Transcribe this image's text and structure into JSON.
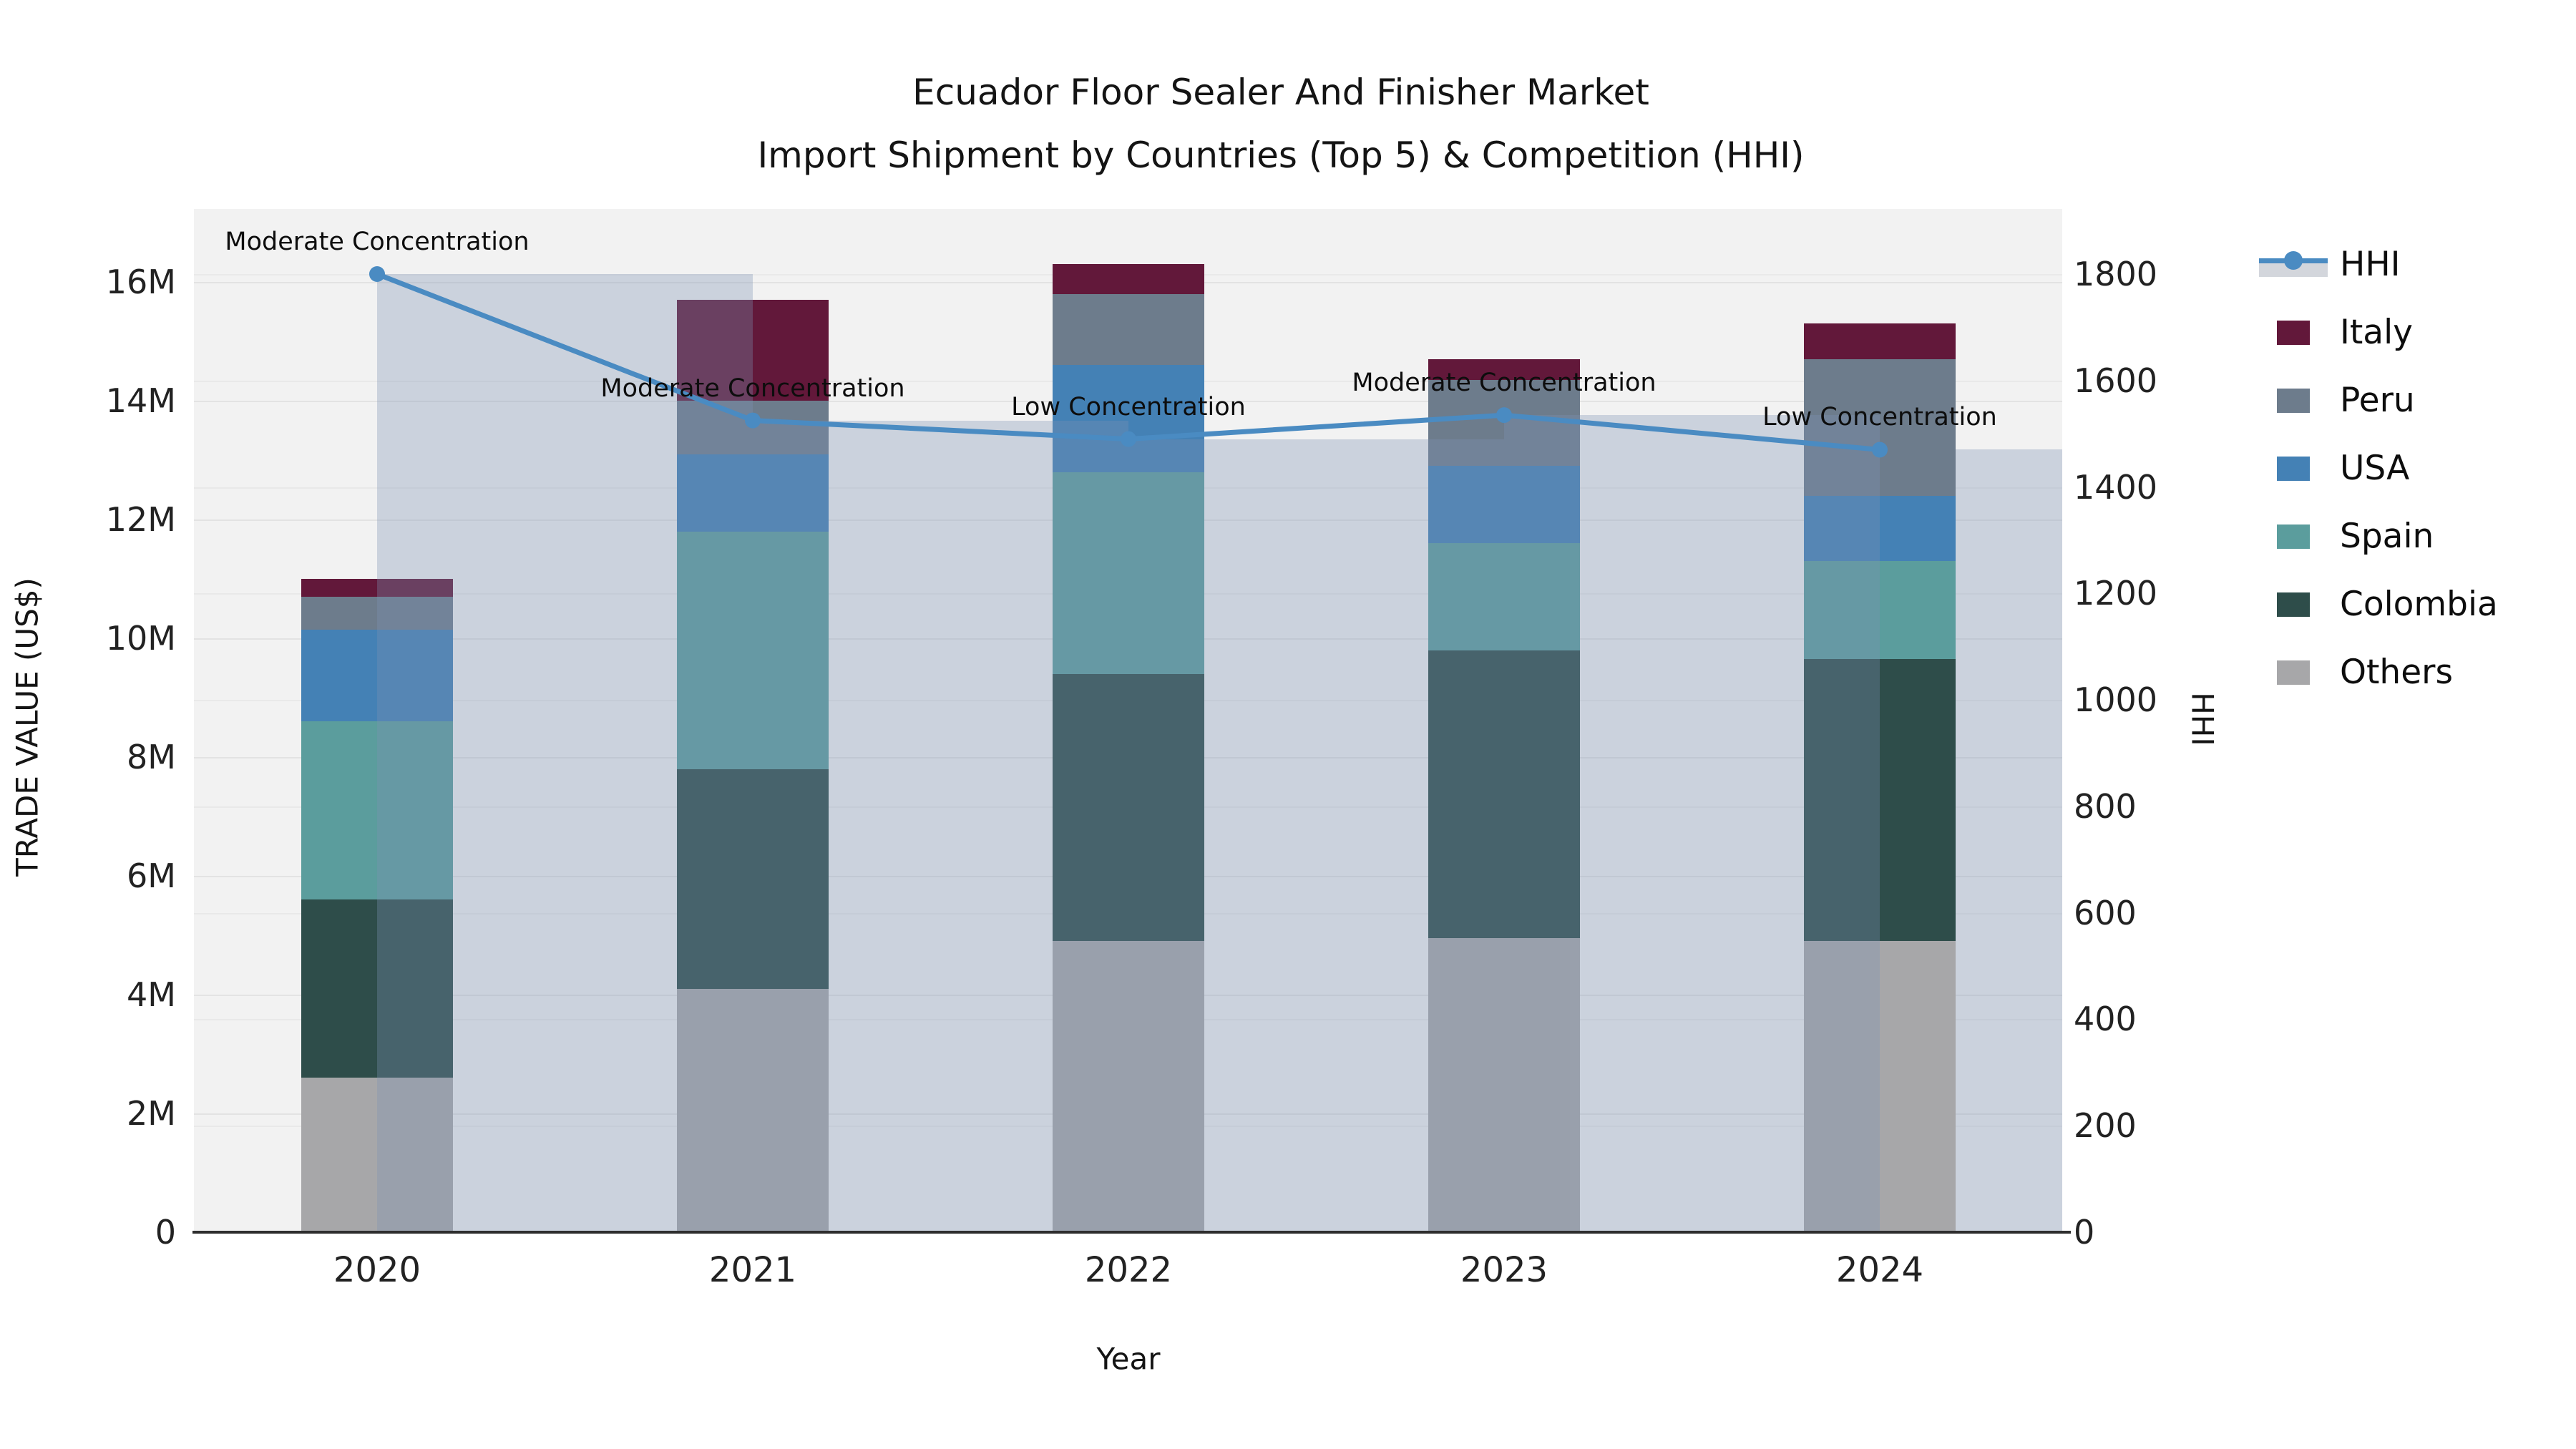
{
  "title": {
    "line1": "Ecuador Floor Sealer And Finisher Market",
    "line2": "Import Shipment by Countries (Top 5) & Competition (HHI)"
  },
  "axes": {
    "x_title": "Year",
    "y_left_title": "TRADE VALUE (US$)",
    "y_right_title": "HHI",
    "y_left_tick_labels": [
      "0",
      "2M",
      "4M",
      "6M",
      "8M",
      "10M",
      "12M",
      "14M",
      "16M"
    ],
    "y_left_tick_values": [
      0,
      2,
      4,
      6,
      8,
      10,
      12,
      14,
      16
    ],
    "y_right_tick_labels": [
      "0",
      "200",
      "400",
      "600",
      "800",
      "1000",
      "1200",
      "1400",
      "1600",
      "1800"
    ],
    "y_right_tick_values": [
      0,
      200,
      400,
      600,
      800,
      1000,
      1200,
      1400,
      1600,
      1800
    ]
  },
  "legend": {
    "items": [
      {
        "label": "HHI",
        "type": "line",
        "color": "#4a8bc2"
      },
      {
        "label": "Italy",
        "type": "patch",
        "color": "#62183a"
      },
      {
        "label": "Peru",
        "type": "patch",
        "color": "#6d7c8c"
      },
      {
        "label": "USA",
        "type": "patch",
        "color": "#4481b5"
      },
      {
        "label": "Spain",
        "type": "patch",
        "color": "#5b9d9d"
      },
      {
        "label": "Colombia",
        "type": "patch",
        "color": "#2e4d4a"
      },
      {
        "label": "Others",
        "type": "patch",
        "color": "#a7a7a9"
      }
    ]
  },
  "chart_data": {
    "type": "bar",
    "subtype": "stacked-bars-with-line-overlay",
    "categories": [
      "2020",
      "2021",
      "2022",
      "2023",
      "2024"
    ],
    "value_unit": "US$ millions (left axis), HHI index (right axis)",
    "series": [
      {
        "name": "Others",
        "color": "#a7a7a9",
        "values": [
          2.6,
          4.1,
          4.9,
          4.95,
          4.9
        ]
      },
      {
        "name": "Colombia",
        "color": "#2e4d4a",
        "values": [
          3.0,
          3.7,
          4.5,
          4.85,
          4.75
        ]
      },
      {
        "name": "Spain",
        "color": "#5b9d9d",
        "values": [
          3.0,
          4.0,
          3.4,
          1.8,
          1.65
        ]
      },
      {
        "name": "USA",
        "color": "#4481b5",
        "values": [
          1.55,
          1.3,
          1.8,
          1.3,
          1.1
        ]
      },
      {
        "name": "Peru",
        "color": "#6d7c8c",
        "values": [
          0.55,
          0.9,
          1.2,
          1.45,
          2.3
        ]
      },
      {
        "name": "Italy",
        "color": "#62183a",
        "values": [
          0.3,
          1.7,
          0.5,
          0.35,
          0.6
        ]
      }
    ],
    "bar_totals": [
      11.0,
      15.7,
      16.3,
      14.7,
      15.3
    ],
    "hhi": {
      "name": "HHI",
      "axis": "right",
      "color": "#4a8bc2",
      "values": [
        1800,
        1525,
        1490,
        1535,
        1470
      ]
    },
    "annotations": [
      {
        "year": "2020",
        "text": "Moderate Concentration"
      },
      {
        "year": "2021",
        "text": "Moderate Concentration"
      },
      {
        "year": "2022",
        "text": "Low Concentration"
      },
      {
        "year": "2023",
        "text": "Moderate Concentration"
      },
      {
        "year": "2024",
        "text": "Low Concentration"
      }
    ],
    "title": "Ecuador Floor Sealer And Finisher Market Import Shipment by Countries (Top 5) & Competition (HHI)",
    "xlabel": "Year",
    "ylabel_left": "TRADE VALUE (US$)",
    "ylabel_right": "HHI",
    "ylim_left": [
      0,
      17.2
    ],
    "ylim_right": [
      0,
      1925
    ],
    "grid": true,
    "legend_position": "right",
    "colors": {
      "plot_background": "#f2f2f2",
      "page_background": "#ffffff",
      "hhi_overlay_fill": "rgba(125,145,180,0.33)",
      "axis_line": "#2e2e2e",
      "gridline": "#e3e3e3"
    }
  }
}
